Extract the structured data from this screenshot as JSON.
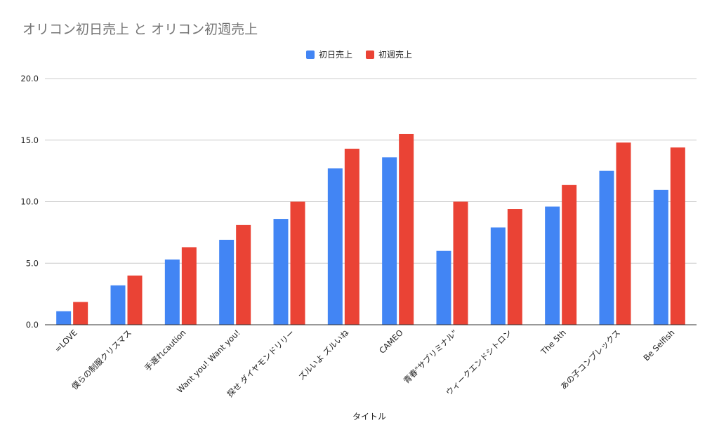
{
  "chart_data": {
    "type": "bar",
    "title": "オリコン初日売上 と オリコン初週売上",
    "xlabel": "タイトル",
    "ylabel": "",
    "ylim": [
      0,
      20
    ],
    "yticks": [
      "0.0",
      "5.0",
      "10.0",
      "15.0",
      "20.0"
    ],
    "grid": true,
    "legend": "top",
    "categories": [
      "=LOVE",
      "僕らの制服クリスマス",
      "手遅れcaution",
      "Want you! Want you!",
      "探せ ダイヤモンドリリー",
      "ズルいよ ズルいね",
      "CAMEO",
      "青春\"サブリミナル\"",
      "ウィークエンドシトロン",
      "The 5th",
      "あの子コンプレックス",
      "Be Selfish"
    ],
    "series": [
      {
        "name": "初日売上",
        "color": "#4285f4",
        "values": [
          1.1,
          3.2,
          5.3,
          6.9,
          8.6,
          12.7,
          13.6,
          6.0,
          7.9,
          9.6,
          12.5,
          10.95
        ]
      },
      {
        "name": "初週売上",
        "color": "#ea4335",
        "values": [
          1.85,
          4.0,
          6.3,
          8.1,
          10.0,
          14.3,
          15.5,
          10.0,
          9.4,
          11.35,
          14.8,
          14.4
        ]
      }
    ]
  }
}
